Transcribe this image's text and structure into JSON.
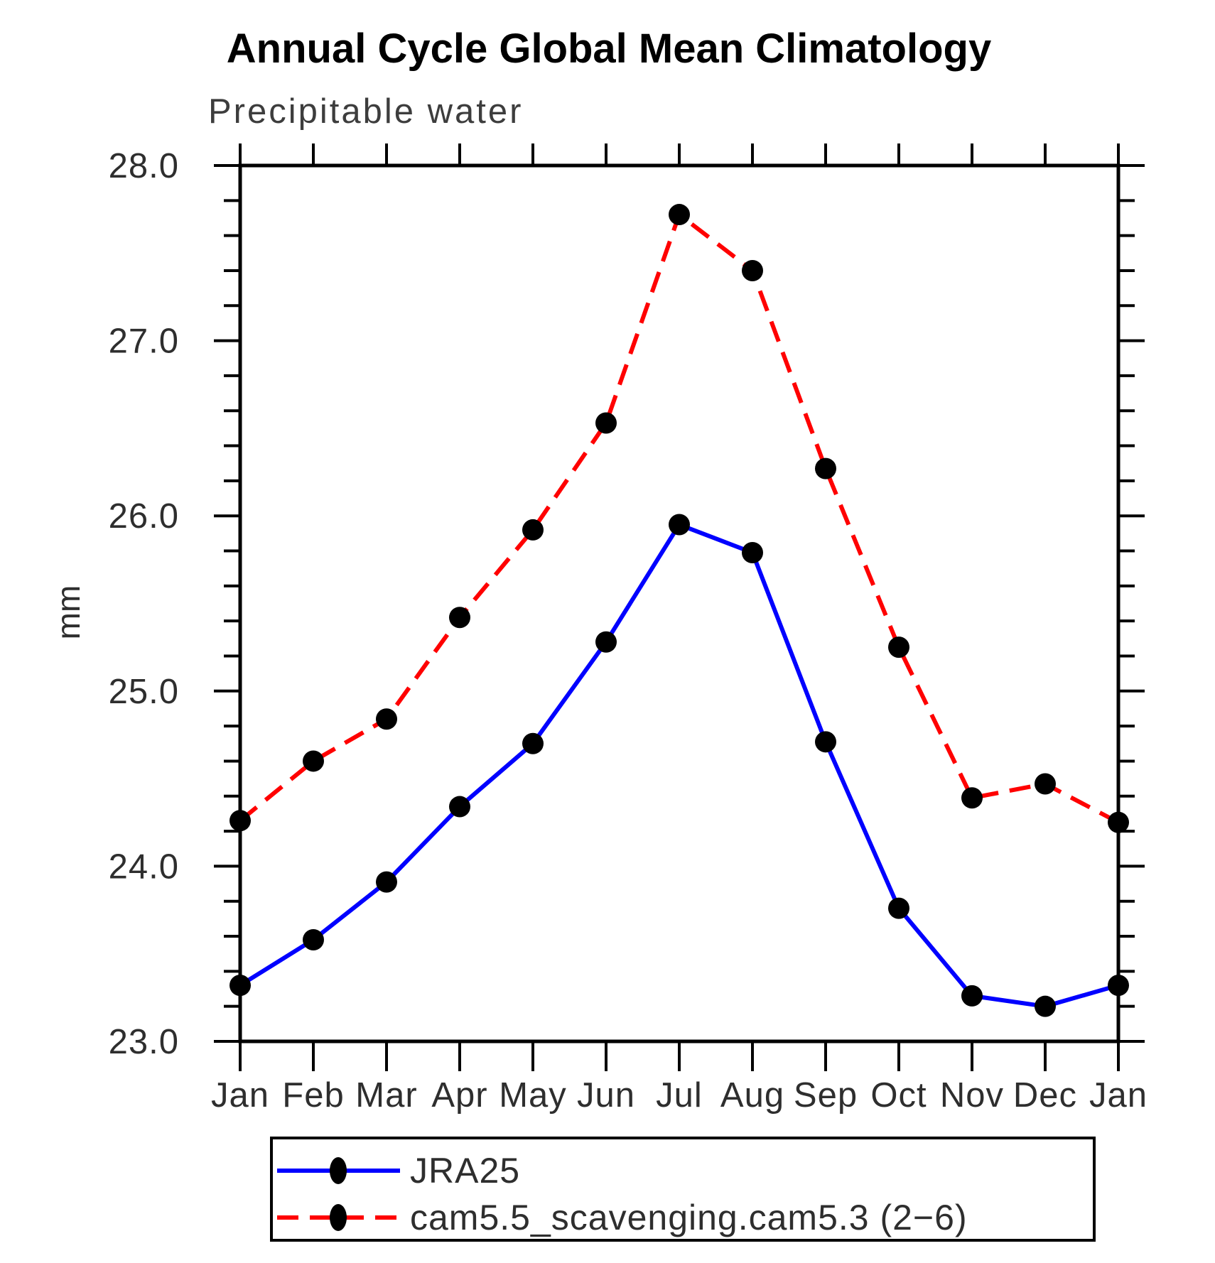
{
  "chart_data": {
    "type": "line",
    "title": "Annual Cycle Global Mean Climatology",
    "subtitle": "Precipitable water",
    "ylabel": "mm",
    "xlabel": "",
    "categories": [
      "Jan",
      "Feb",
      "Mar",
      "Apr",
      "May",
      "Jun",
      "Jul",
      "Aug",
      "Sep",
      "Oct",
      "Nov",
      "Dec",
      "Jan"
    ],
    "series": [
      {
        "name": "JRA25",
        "color": "#0000ff",
        "line_style": "solid",
        "marker": "filled-circle",
        "marker_color": "#000000",
        "values": [
          23.32,
          23.58,
          23.91,
          24.34,
          24.7,
          25.28,
          25.95,
          25.79,
          24.71,
          23.76,
          23.26,
          23.2,
          23.32
        ]
      },
      {
        "name": "cam5.5_scavenging.cam5.3 (2−6)",
        "color": "#ff0000",
        "line_style": "dashed",
        "marker": "filled-circle",
        "marker_color": "#000000",
        "values": [
          24.26,
          24.6,
          24.84,
          25.42,
          25.92,
          26.53,
          27.72,
          27.4,
          26.27,
          25.25,
          24.39,
          24.47,
          24.25
        ]
      }
    ],
    "ylim": [
      23.0,
      28.0
    ],
    "ytick_major_step": 1.0,
    "ytick_minor_step": 0.2,
    "ytick_labels": [
      "23.0",
      "24.0",
      "25.0",
      "26.0",
      "27.0",
      "28.0"
    ],
    "grid": false,
    "legend_position": "bottom",
    "frame_color": "#000000"
  }
}
